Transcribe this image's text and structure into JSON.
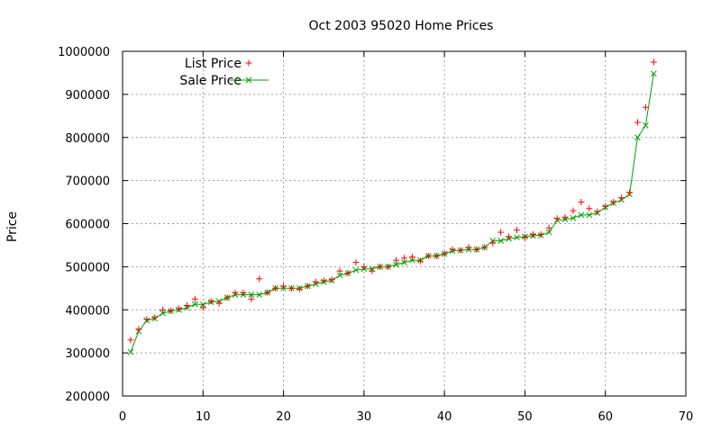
{
  "chart_data": {
    "type": "scatter",
    "title": "Oct 2003 95020 Home Prices",
    "xlabel": "",
    "ylabel": "Price",
    "xlim": [
      0,
      70
    ],
    "ylim": [
      200000,
      1000000
    ],
    "xticks": [
      "0",
      "10",
      "20",
      "30",
      "40",
      "50",
      "60",
      "70"
    ],
    "yticks": [
      "200000",
      "300000",
      "400000",
      "500000",
      "600000",
      "700000",
      "800000",
      "900000",
      "1000000"
    ],
    "grid": true,
    "legend_position": "top-left",
    "series": [
      {
        "name": "List Price",
        "style": "points",
        "marker": "plus",
        "color": "#ff0000",
        "x": [
          1,
          2,
          3,
          4,
          5,
          6,
          7,
          8,
          9,
          10,
          11,
          12,
          13,
          14,
          15,
          16,
          17,
          18,
          19,
          20,
          21,
          22,
          23,
          24,
          25,
          26,
          27,
          28,
          29,
          30,
          31,
          32,
          33,
          34,
          35,
          36,
          37,
          38,
          39,
          40,
          41,
          42,
          43,
          44,
          45,
          46,
          47,
          48,
          49,
          50,
          51,
          52,
          53,
          54,
          55,
          56,
          57,
          58,
          59,
          60,
          61,
          62,
          63,
          64,
          65,
          66
        ],
        "y": [
          330000,
          355000,
          378000,
          382000,
          400000,
          398000,
          403000,
          410000,
          425000,
          405000,
          420000,
          415000,
          428000,
          440000,
          440000,
          425000,
          472000,
          440000,
          450000,
          455000,
          450000,
          448000,
          455000,
          465000,
          468000,
          470000,
          490000,
          485000,
          510000,
          500000,
          490000,
          500000,
          500000,
          515000,
          520000,
          523000,
          513000,
          525000,
          525000,
          530000,
          540000,
          538000,
          545000,
          540000,
          545000,
          555000,
          580000,
          570000,
          585000,
          568000,
          575000,
          575000,
          590000,
          612000,
          615000,
          630000,
          650000,
          635000,
          628000,
          640000,
          650000,
          660000,
          672000,
          835000,
          870000,
          975000
        ]
      },
      {
        "name": "Sale Price",
        "style": "linespoints",
        "marker": "x",
        "color": "#00a000",
        "x": [
          1,
          2,
          3,
          4,
          5,
          6,
          7,
          8,
          9,
          10,
          11,
          12,
          13,
          14,
          15,
          16,
          17,
          18,
          19,
          20,
          21,
          22,
          23,
          24,
          25,
          26,
          27,
          28,
          29,
          30,
          31,
          32,
          33,
          34,
          35,
          36,
          37,
          38,
          39,
          40,
          41,
          42,
          43,
          44,
          45,
          46,
          47,
          48,
          49,
          50,
          51,
          52,
          53,
          54,
          55,
          56,
          57,
          58,
          59,
          60,
          61,
          62,
          63,
          64,
          65,
          66
        ],
        "y": [
          302000,
          350000,
          375000,
          380000,
          392000,
          397000,
          400000,
          405000,
          413000,
          412000,
          418000,
          420000,
          428000,
          435000,
          435000,
          435000,
          435000,
          440000,
          450000,
          450000,
          450000,
          450000,
          455000,
          460000,
          465000,
          468000,
          480000,
          485000,
          492000,
          495000,
          495000,
          500000,
          500000,
          505000,
          510000,
          515000,
          515000,
          525000,
          525000,
          530000,
          537000,
          538000,
          540000,
          540000,
          545000,
          560000,
          560000,
          565000,
          568000,
          570000,
          572000,
          573000,
          580000,
          608000,
          610000,
          613000,
          620000,
          620000,
          625000,
          638000,
          648000,
          655000,
          668000,
          800000,
          828000,
          948000
        ]
      }
    ]
  }
}
